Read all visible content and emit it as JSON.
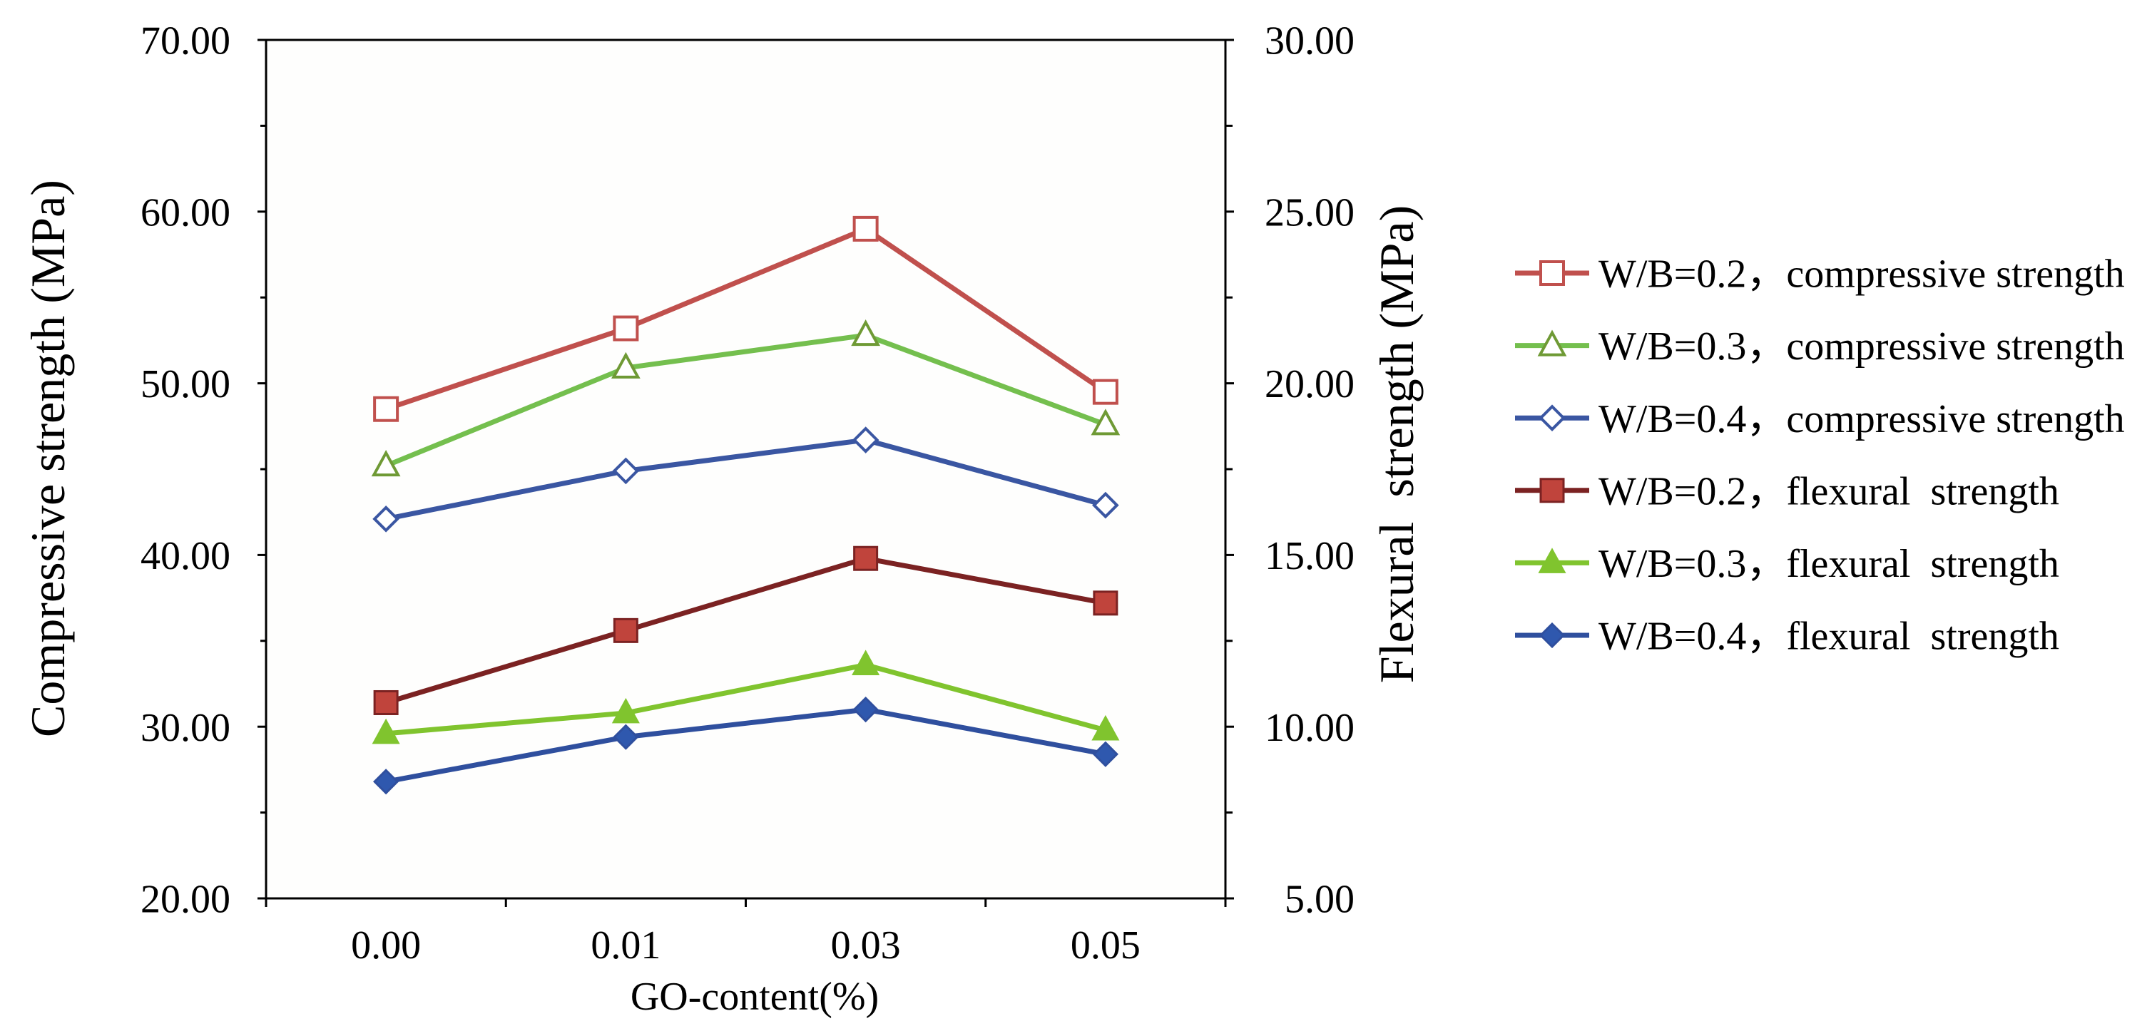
{
  "chart_data": {
    "type": "line",
    "categories": [
      "0.00",
      "0.01",
      "0.03",
      "0.05"
    ],
    "xlabel": "GO-content(%)",
    "ylabel": "Compressive strength (MPa)",
    "y2label": "Flexural  strength (MPa)",
    "ylim": [
      20,
      70
    ],
    "y2lim": [
      5,
      30
    ],
    "yticks": [
      "20.00",
      "30.00",
      "40.00",
      "50.00",
      "60.00",
      "70.00"
    ],
    "y2ticks": [
      "5.00",
      "10.00",
      "15.00",
      "20.00",
      "25.00",
      "30.00"
    ],
    "grid": false,
    "legend_position": "right",
    "series": [
      {
        "name": "W/B=0.2，compressive strength",
        "y_axis": "left",
        "values": [
          48.5,
          53.2,
          59.0,
          49.5
        ],
        "line_color": "#C0504D",
        "marker": "square-open",
        "marker_fill": "#FFFFFF",
        "marker_stroke": "#C0504D"
      },
      {
        "name": "W/B=0.3，compressive strength",
        "y_axis": "left",
        "values": [
          45.2,
          50.9,
          52.8,
          47.6
        ],
        "line_color": "#74BF4E",
        "marker": "triangle-open",
        "marker_fill": "#FFFFFF",
        "marker_stroke": "#6F9A35"
      },
      {
        "name": "W/B=0.4，compressive strength",
        "y_axis": "left",
        "values": [
          42.1,
          44.9,
          46.7,
          42.9
        ],
        "line_color": "#3A56A2",
        "marker": "diamond-open",
        "marker_fill": "#FFFFFF",
        "marker_stroke": "#3A56A2"
      },
      {
        "name": "W/B=0.2，flexural  strength",
        "y_axis": "right",
        "values": [
          10.7,
          12.8,
          14.9,
          13.6
        ],
        "line_color": "#7B2222",
        "marker": "square-filled",
        "marker_fill": "#C0443C",
        "marker_stroke": "#7B2222"
      },
      {
        "name": "W/B=0.3，flexural  strength",
        "y_axis": "right",
        "values": [
          9.8,
          10.4,
          11.8,
          9.9
        ],
        "line_color": "#80C42E",
        "marker": "triangle-filled",
        "marker_fill": "#80C42E",
        "marker_stroke": "#80C42E"
      },
      {
        "name": "W/B=0.4，flexural  strength",
        "y_axis": "right",
        "values": [
          8.4,
          9.7,
          10.5,
          9.2
        ],
        "line_color": "#2F4F9E",
        "marker": "diamond-filled",
        "marker_fill": "#2F58AE",
        "marker_stroke": "#2F4F9E"
      }
    ]
  }
}
